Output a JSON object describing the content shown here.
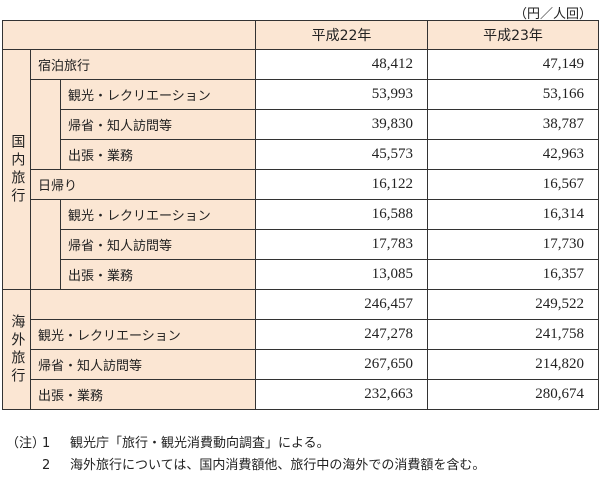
{
  "unit_label": "（円／人回）",
  "columns": [
    "平成22年",
    "平成23年"
  ],
  "domestic": {
    "label": "国内旅行",
    "groups": [
      {
        "label": "宿泊旅行",
        "values": [
          "48,412",
          "47,149"
        ],
        "rows": [
          {
            "label": "観光・レクリエーション",
            "values": [
              "53,993",
              "53,166"
            ]
          },
          {
            "label": "帰省・知人訪問等",
            "values": [
              "39,830",
              "38,787"
            ]
          },
          {
            "label": "出張・業務",
            "values": [
              "45,573",
              "42,963"
            ]
          }
        ]
      },
      {
        "label": "日帰り",
        "values": [
          "16,122",
          "16,567"
        ],
        "rows": [
          {
            "label": "観光・レクリエーション",
            "values": [
              "16,588",
              "16,314"
            ]
          },
          {
            "label": "帰省・知人訪問等",
            "values": [
              "17,783",
              "17,730"
            ]
          },
          {
            "label": "出張・業務",
            "values": [
              "13,085",
              "16,357"
            ]
          }
        ]
      }
    ]
  },
  "overseas": {
    "label": "海外旅行",
    "values": [
      "246,457",
      "249,522"
    ],
    "rows": [
      {
        "label": "観光・レクリエーション",
        "values": [
          "247,278",
          "241,758"
        ]
      },
      {
        "label": "帰省・知人訪問等",
        "values": [
          "267,650",
          "214,820"
        ]
      },
      {
        "label": "出張・業務",
        "values": [
          "232,663",
          "280,674"
        ]
      }
    ]
  },
  "notes": {
    "lead": "（注）",
    "items": [
      {
        "num": "1",
        "text": "観光庁「旅行・観光消費動向調査」による。"
      },
      {
        "num": "2",
        "text": "海外旅行については、国内消費額他、旅行中の海外での消費額を含む。"
      }
    ]
  },
  "colors": {
    "header_fill": "#fbe6d3",
    "border": "#333333",
    "text": "#222222"
  }
}
